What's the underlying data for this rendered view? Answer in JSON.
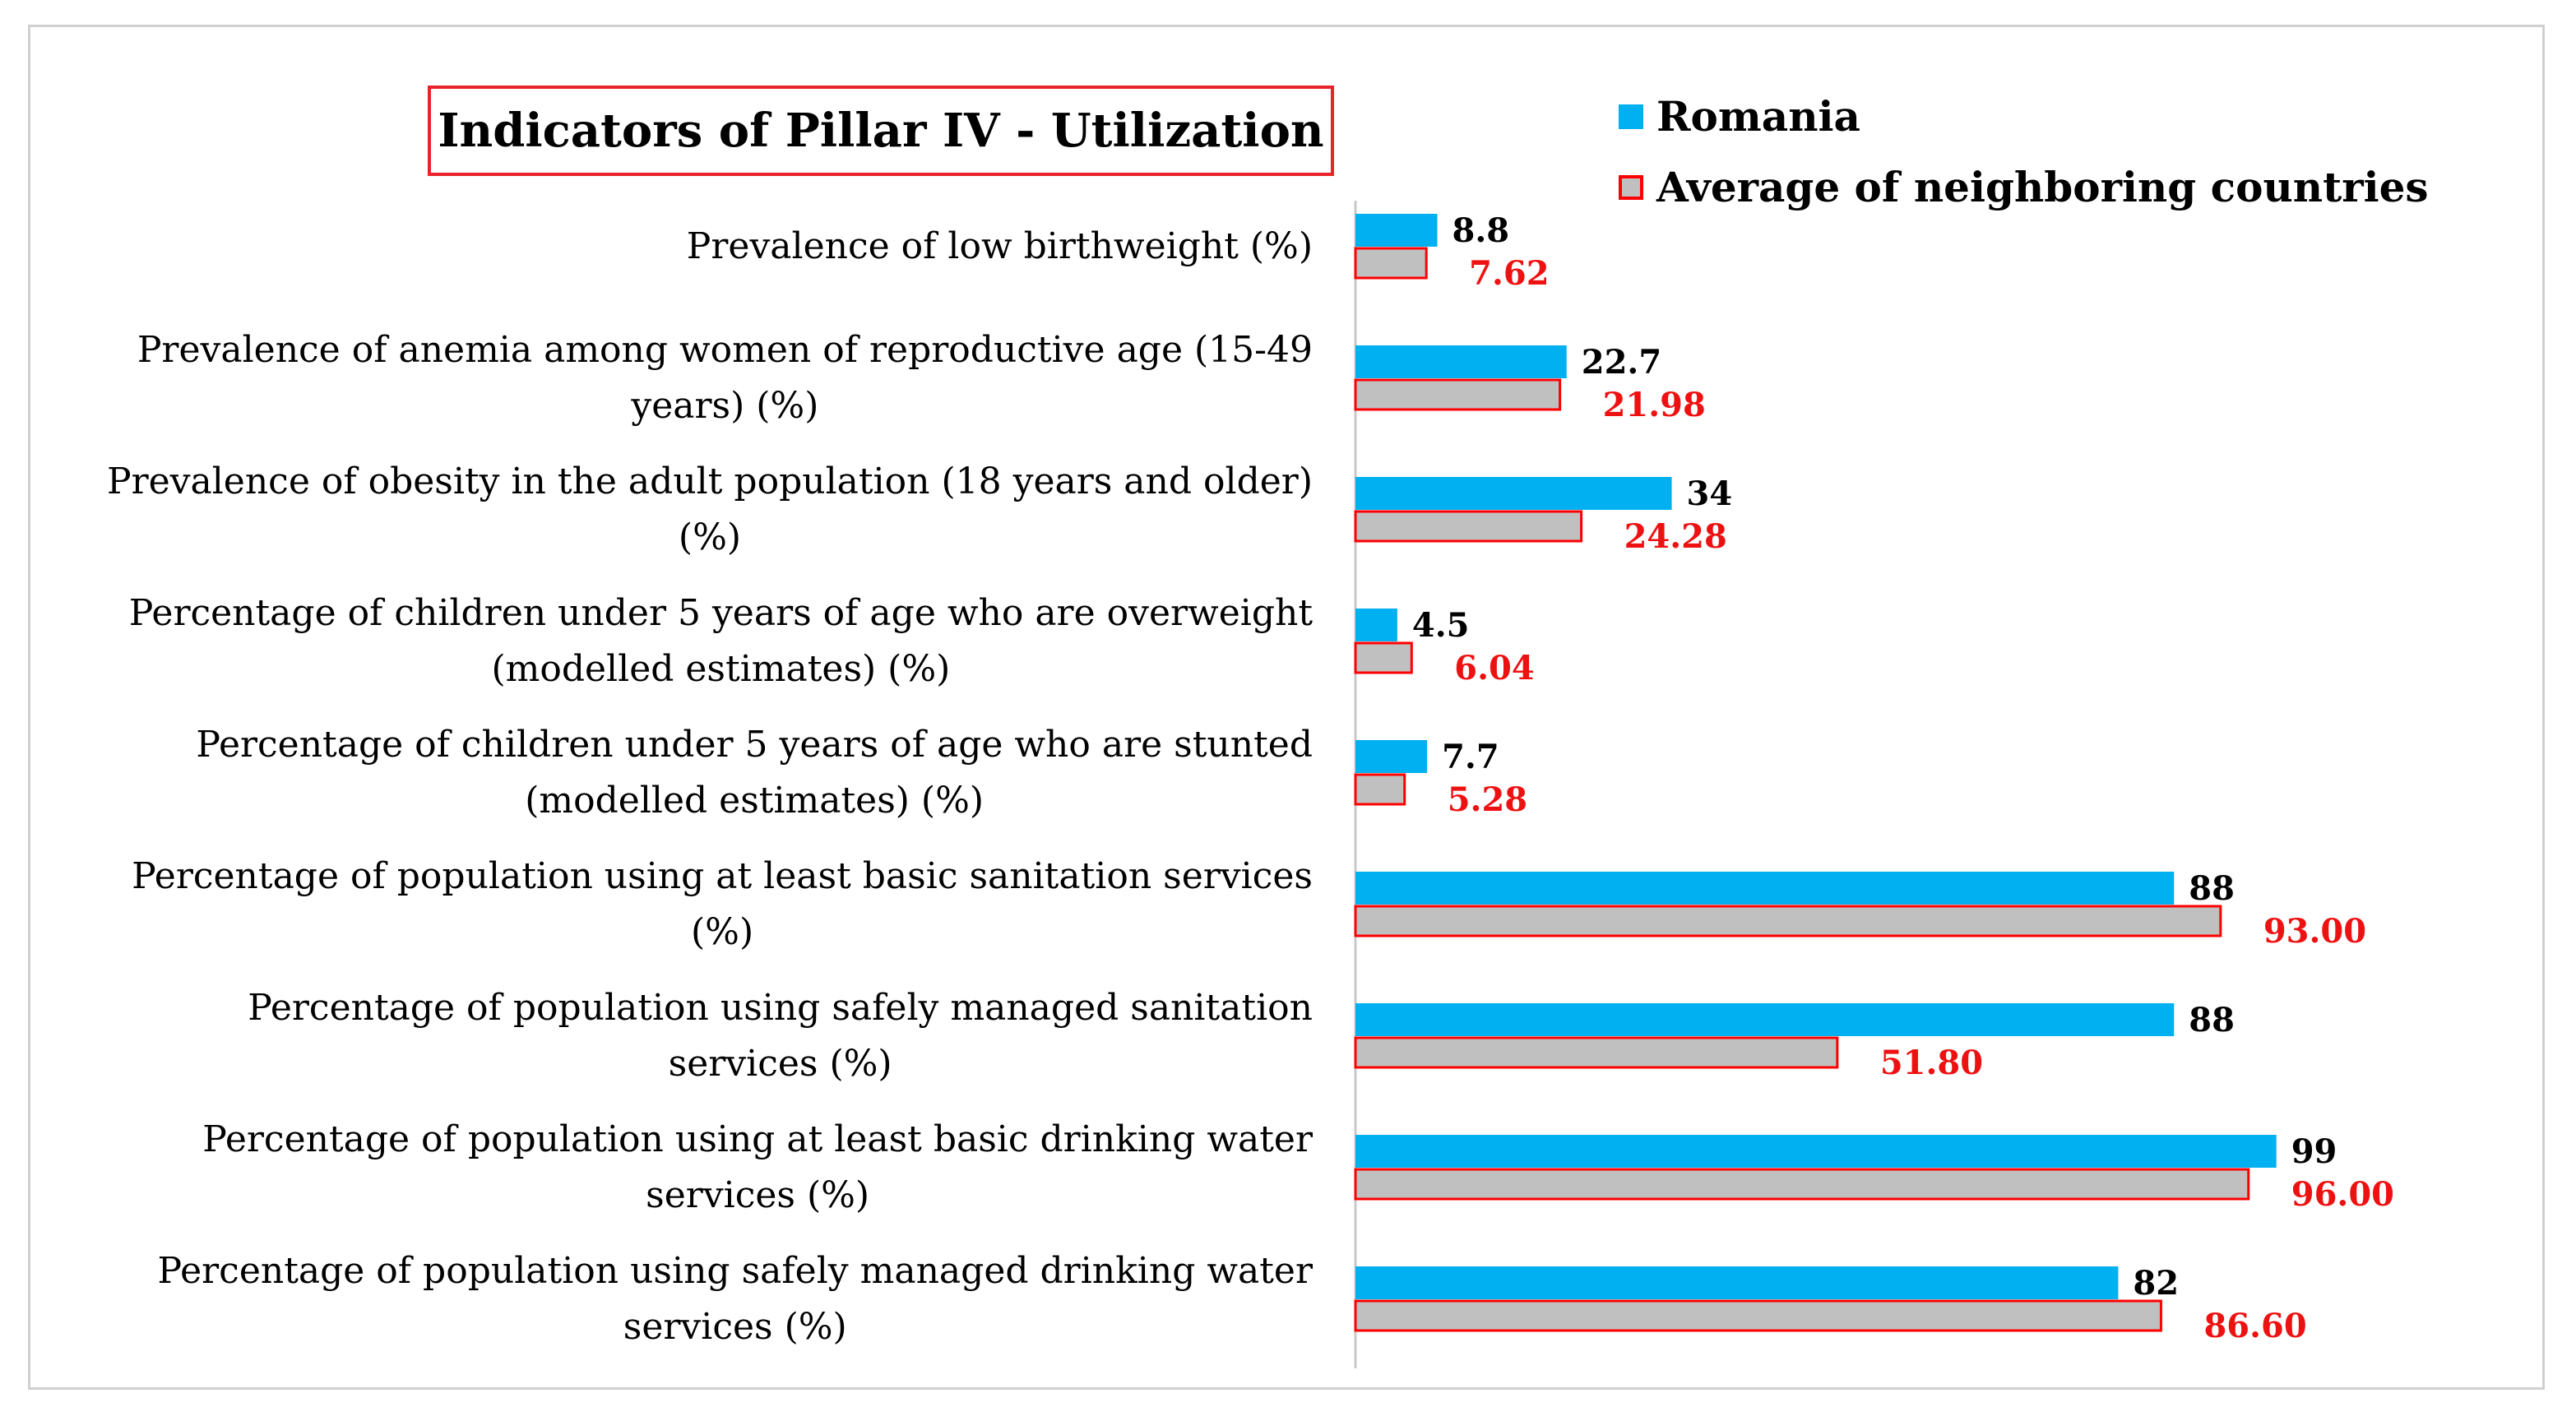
{
  "chart_data": {
    "type": "bar",
    "orientation": "horizontal",
    "title": "Indicators of Pillar IV - Utilization",
    "categories": [
      [
        "Prevalence of low birthweight (%)"
      ],
      [
        "Prevalence of anemia among women of reproductive age (15-49",
        "years) (%)"
      ],
      [
        "Prevalence of obesity in the adult population (18 years and older)",
        "(%)"
      ],
      [
        "Percentage of children under 5 years of age who are overweight",
        "(modelled estimates) (%)"
      ],
      [
        "Percentage of children under 5 years of age who are stunted",
        "(modelled estimates) (%)"
      ],
      [
        "Percentage of population using at least basic sanitation services",
        "(%)"
      ],
      [
        "Percentage of population using safely managed sanitation",
        "services (%)"
      ],
      [
        "Percentage of population using at least basic drinking water",
        "services (%)"
      ],
      [
        "Percentage of population using safely managed drinking water",
        "services (%)"
      ]
    ],
    "series": [
      {
        "name": "Romania",
        "color": "#00b0f0",
        "values": [
          8.8,
          22.7,
          34,
          4.5,
          7.7,
          88,
          88,
          99,
          82
        ],
        "labels": [
          "8.8",
          "22.7",
          "34",
          "4.5",
          "7.7",
          "88",
          "88",
          "99",
          "82"
        ]
      },
      {
        "name": "Average of neighboring countries",
        "color": "#c0c0c0",
        "border_color": "#ff0000",
        "values": [
          7.62,
          21.98,
          24.28,
          6.04,
          5.28,
          93.0,
          51.8,
          96.0,
          86.6
        ],
        "labels": [
          "7.62",
          "21.98",
          "24.28",
          "6.04",
          "5.28",
          "93.00",
          "51.80",
          "96.00",
          "86.60"
        ]
      }
    ],
    "xlim": [
      0,
      100
    ],
    "grid": false,
    "legend_position": "top-right"
  }
}
